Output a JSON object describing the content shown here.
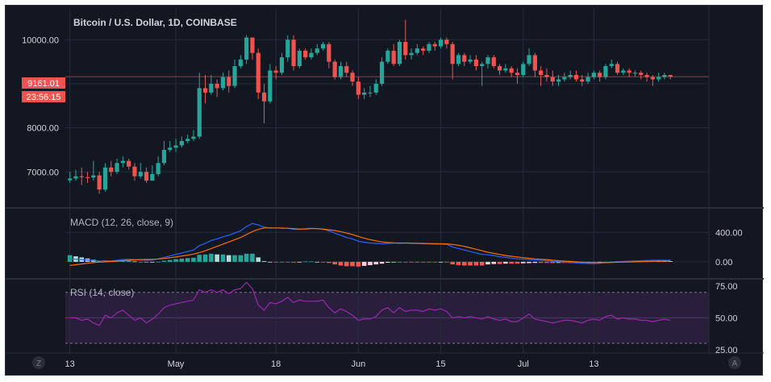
{
  "header": {
    "title": "Bitcoin / U.S. Dollar, 1D, COINBASE"
  },
  "colors": {
    "background": "#131722",
    "grid": "#262b3b",
    "up": "#26a69a",
    "down": "#ef5350",
    "macd_line": "#2962ff",
    "signal_line": "#ff6d00",
    "rsi_line": "#9c27b0",
    "rsi_band": "#2a1e3d",
    "price_label": "#ef5350"
  },
  "price_label": {
    "value": "9161.01",
    "countdown": "23:56:15"
  },
  "panes": {
    "macd_title": "MACD (12, 26, close, 9)",
    "rsi_title": "RSI (14, close)"
  },
  "footer": {
    "left_button": "Z",
    "right_button": "A"
  },
  "chart_data": [
    {
      "type": "candlestick",
      "title": "Bitcoin / U.S. Dollar, 1D, COINBASE",
      "ylim": [
        6200,
        10700
      ],
      "yticks": [
        {
          "value": 7000,
          "label": "7000.00"
        },
        {
          "value": 8000,
          "label": "8000.00"
        },
        {
          "value": 10000,
          "label": "10000.00"
        }
      ],
      "xticks": [
        {
          "day": 0,
          "label": "13"
        },
        {
          "day": 18,
          "label": "May"
        },
        {
          "day": 35,
          "label": "18"
        },
        {
          "day": 49,
          "label": "Jun"
        },
        {
          "day": 63,
          "label": "15"
        },
        {
          "day": 77,
          "label": "Jul"
        },
        {
          "day": 89,
          "label": "13"
        }
      ],
      "close": [
        6850,
        6900,
        6880,
        6870,
        6920,
        6600,
        7100,
        7000,
        7200,
        7250,
        7120,
        6900,
        7000,
        6800,
        6950,
        7200,
        7500,
        7550,
        7600,
        7700,
        7750,
        7800,
        8900,
        8800,
        9000,
        8900,
        9150,
        8950,
        9400,
        9550,
        10050,
        9700,
        8800,
        8600,
        9300,
        9250,
        9600,
        10000,
        9400,
        9750,
        9600,
        9700,
        9800,
        9900,
        9500,
        9150,
        9400,
        9250,
        9050,
        8750,
        8800,
        8800,
        9000,
        9500,
        9750,
        9450,
        9950,
        9650,
        9700,
        9800,
        9750,
        9900,
        9850,
        10000,
        9900,
        9450,
        9650,
        9500,
        9550,
        9400,
        9450,
        9600,
        9400,
        9300,
        9350,
        9250,
        9200,
        9450,
        9650,
        9300,
        9200,
        9150,
        9050,
        9100,
        9150,
        9200,
        9100,
        9050,
        9150,
        9250,
        9150,
        9400,
        9450,
        9250,
        9300,
        9250,
        9250,
        9200,
        9150,
        9100,
        9150,
        9200,
        9161
      ],
      "high": [
        7000,
        7050,
        7100,
        7000,
        7250,
        7000,
        7200,
        7250,
        7300,
        7350,
        7300,
        7200,
        7200,
        7100,
        7150,
        7350,
        7700,
        7700,
        7750,
        7800,
        7850,
        7950,
        9250,
        9200,
        9200,
        9100,
        9250,
        9300,
        9550,
        9650,
        10100,
        10050,
        9800,
        9000,
        9450,
        9400,
        9700,
        10100,
        10100,
        9800,
        9800,
        9800,
        9900,
        9950,
        9950,
        9550,
        9500,
        9500,
        9300,
        9150,
        8900,
        8950,
        9100,
        9600,
        9800,
        9900,
        10000,
        10450,
        9800,
        9900,
        9850,
        9950,
        9950,
        10050,
        10050,
        9950,
        9700,
        9700,
        9650,
        9650,
        9500,
        9650,
        9650,
        9450,
        9450,
        9400,
        9350,
        9500,
        9800,
        9700,
        9400,
        9350,
        9300,
        9200,
        9250,
        9300,
        9300,
        9200,
        9250,
        9300,
        9300,
        9450,
        9550,
        9500,
        9350,
        9350,
        9300,
        9300,
        9250,
        9200,
        9250,
        9250,
        9200
      ],
      "low": [
        6750,
        6800,
        6700,
        6750,
        6800,
        6500,
        6550,
        6900,
        6950,
        7100,
        7050,
        6800,
        6850,
        6750,
        6800,
        6900,
        7150,
        7450,
        7450,
        7550,
        7650,
        7700,
        7750,
        8550,
        8750,
        8700,
        8850,
        8800,
        8900,
        9350,
        9450,
        9550,
        8650,
        8100,
        8550,
        9100,
        9200,
        9500,
        9300,
        9350,
        9550,
        9550,
        9650,
        9750,
        9350,
        9100,
        9100,
        9150,
        8950,
        8650,
        8650,
        8700,
        8750,
        8950,
        9450,
        9400,
        9400,
        9550,
        9550,
        9650,
        9650,
        9700,
        9750,
        9800,
        9800,
        9100,
        9400,
        9400,
        9450,
        9300,
        8950,
        9350,
        9350,
        9200,
        9250,
        9150,
        9000,
        9150,
        9400,
        9150,
        8950,
        9050,
        8950,
        8950,
        9050,
        9100,
        9050,
        8950,
        9000,
        9100,
        9050,
        9100,
        9350,
        9200,
        9200,
        9150,
        9150,
        9100,
        9050,
        8950,
        9050,
        9100,
        9100
      ]
    },
    {
      "type": "macd",
      "title": "MACD (12, 26, close, 9)",
      "ylim": [
        -220,
        720
      ],
      "yticks": [
        {
          "value": 0,
          "label": "0.00"
        },
        {
          "value": 400,
          "label": "400.00"
        }
      ],
      "macd": [
        40,
        35,
        30,
        25,
        20,
        10,
        15,
        12,
        20,
        30,
        35,
        30,
        25,
        20,
        25,
        40,
        60,
        80,
        100,
        120,
        140,
        160,
        220,
        250,
        290,
        310,
        340,
        360,
        390,
        420,
        480,
        520,
        500,
        470,
        460,
        460,
        455,
        455,
        440,
        440,
        450,
        455,
        450,
        440,
        420,
        390,
        360,
        330,
        310,
        280,
        265,
        255,
        250,
        245,
        250,
        255,
        250,
        255,
        250,
        248,
        245,
        243,
        240,
        240,
        238,
        200,
        180,
        160,
        140,
        120,
        100,
        95,
        85,
        70,
        60,
        50,
        40,
        35,
        30,
        25,
        20,
        15,
        5,
        0,
        -5,
        -10,
        -15,
        -20,
        -22,
        -25,
        -20,
        -10,
        -5,
        0,
        5,
        10,
        12,
        15,
        18,
        20,
        20,
        20,
        20
      ],
      "signal": [
        -50,
        -40,
        -30,
        -20,
        -10,
        -5,
        0,
        5,
        10,
        15,
        20,
        25,
        30,
        32,
        34,
        38,
        45,
        55,
        65,
        78,
        90,
        105,
        125,
        150,
        180,
        210,
        240,
        270,
        300,
        330,
        370,
        410,
        440,
        460,
        460,
        460,
        458,
        455,
        450,
        445,
        445,
        450,
        450,
        445,
        435,
        425,
        410,
        390,
        370,
        345,
        320,
        300,
        285,
        270,
        262,
        258,
        255,
        255,
        253,
        252,
        250,
        248,
        246,
        245,
        243,
        235,
        225,
        210,
        190,
        170,
        150,
        130,
        115,
        100,
        85,
        75,
        65,
        55,
        48,
        40,
        35,
        30,
        22,
        15,
        10,
        5,
        0,
        -5,
        -8,
        -10,
        -11,
        -11,
        -8,
        -6,
        -4,
        -2,
        0,
        2,
        4,
        6,
        8,
        10,
        12
      ],
      "histogram": [
        90,
        75,
        60,
        45,
        30,
        15,
        15,
        7,
        10,
        15,
        15,
        5,
        -5,
        -12,
        -9,
        2,
        15,
        25,
        35,
        42,
        50,
        55,
        95,
        100,
        110,
        100,
        100,
        90,
        90,
        90,
        110,
        110,
        60,
        10,
        0,
        0,
        -3,
        0,
        -10,
        -5,
        5,
        5,
        0,
        -5,
        -15,
        -35,
        -50,
        -60,
        -60,
        -65,
        -55,
        -45,
        -35,
        -25,
        -12,
        -3,
        -5,
        0,
        -3,
        -4,
        -5,
        -5,
        -6,
        -5,
        -5,
        -35,
        -45,
        -50,
        -50,
        -50,
        -50,
        -35,
        -30,
        -30,
        -25,
        -25,
        -25,
        -20,
        -18,
        -15,
        -15,
        -15,
        -17,
        -15,
        -15,
        -15,
        -15,
        -15,
        -14,
        -15,
        -9,
        1,
        3,
        6,
        9,
        12,
        12,
        13,
        14,
        14,
        12,
        10,
        8
      ]
    },
    {
      "type": "rsi",
      "title": "RSI (14, close)",
      "ylim": [
        23,
        80
      ],
      "band": [
        30,
        70
      ],
      "yticks": [
        {
          "value": 25,
          "label": "25.00"
        },
        {
          "value": 50,
          "label": "50.00"
        },
        {
          "value": 75,
          "label": "75.00"
        }
      ],
      "values": [
        50,
        50,
        48,
        49,
        46,
        44,
        52,
        50,
        54,
        56,
        52,
        48,
        50,
        46,
        49,
        53,
        58,
        60,
        61,
        62,
        63,
        64,
        72,
        70,
        72,
        70,
        72,
        69,
        72,
        73,
        78,
        73,
        60,
        56,
        62,
        61,
        63,
        66,
        62,
        64,
        63,
        63,
        63,
        64,
        58,
        54,
        57,
        55,
        52,
        48,
        49,
        49,
        51,
        56,
        58,
        54,
        58,
        55,
        56,
        56,
        55,
        57,
        56,
        57,
        55,
        50,
        51,
        50,
        51,
        50,
        49,
        51,
        49,
        48,
        49,
        47,
        47,
        50,
        53,
        49,
        48,
        47,
        46,
        47,
        48,
        48,
        47,
        46,
        48,
        49,
        48,
        51,
        52,
        49,
        50,
        49,
        49,
        48,
        48,
        47,
        48,
        49,
        48
      ]
    }
  ]
}
